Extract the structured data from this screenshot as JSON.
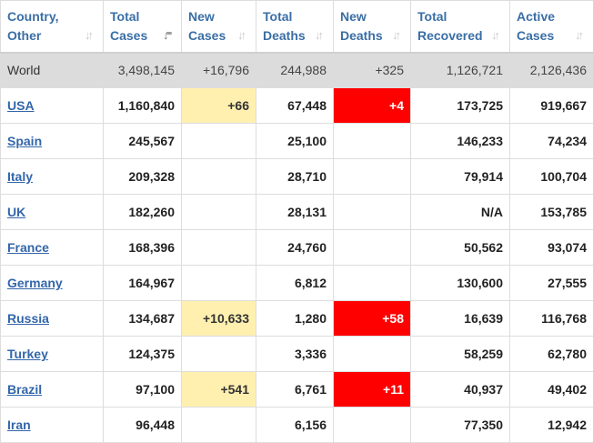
{
  "headers": [
    {
      "line1": "Country,",
      "line2": "Other",
      "sort": "inactive"
    },
    {
      "line1": "Total",
      "line2": "Cases",
      "sort": "active"
    },
    {
      "line1": "New",
      "line2": "Cases",
      "sort": "inactive"
    },
    {
      "line1": "Total",
      "line2": "Deaths",
      "sort": "inactive"
    },
    {
      "line1": "New",
      "line2": "Deaths",
      "sort": "inactive"
    },
    {
      "line1": "Total",
      "line2": "Recovered",
      "sort": "inactive"
    },
    {
      "line1": "Active",
      "line2": "Cases",
      "sort": "inactive"
    }
  ],
  "world": {
    "country": "World",
    "total_cases": "3,498,145",
    "new_cases": "+16,796",
    "total_deaths": "244,988",
    "new_deaths": "+325",
    "total_recovered": "1,126,721",
    "active_cases": "2,126,436"
  },
  "rows": [
    {
      "country": "USA",
      "total_cases": "1,160,840",
      "new_cases": "+66",
      "total_deaths": "67,448",
      "new_deaths": "+4",
      "total_recovered": "173,725",
      "active_cases": "919,667"
    },
    {
      "country": "Spain",
      "total_cases": "245,567",
      "new_cases": "",
      "total_deaths": "25,100",
      "new_deaths": "",
      "total_recovered": "146,233",
      "active_cases": "74,234"
    },
    {
      "country": "Italy",
      "total_cases": "209,328",
      "new_cases": "",
      "total_deaths": "28,710",
      "new_deaths": "",
      "total_recovered": "79,914",
      "active_cases": "100,704"
    },
    {
      "country": "UK",
      "total_cases": "182,260",
      "new_cases": "",
      "total_deaths": "28,131",
      "new_deaths": "",
      "total_recovered": "N/A",
      "active_cases": "153,785"
    },
    {
      "country": "France",
      "total_cases": "168,396",
      "new_cases": "",
      "total_deaths": "24,760",
      "new_deaths": "",
      "total_recovered": "50,562",
      "active_cases": "93,074"
    },
    {
      "country": "Germany",
      "total_cases": "164,967",
      "new_cases": "",
      "total_deaths": "6,812",
      "new_deaths": "",
      "total_recovered": "130,600",
      "active_cases": "27,555"
    },
    {
      "country": "Russia",
      "total_cases": "134,687",
      "new_cases": "+10,633",
      "total_deaths": "1,280",
      "new_deaths": "+58",
      "total_recovered": "16,639",
      "active_cases": "116,768"
    },
    {
      "country": "Turkey",
      "total_cases": "124,375",
      "new_cases": "",
      "total_deaths": "3,336",
      "new_deaths": "",
      "total_recovered": "58,259",
      "active_cases": "62,780"
    },
    {
      "country": "Brazil",
      "total_cases": "97,100",
      "new_cases": "+541",
      "total_deaths": "6,761",
      "new_deaths": "+11",
      "total_recovered": "40,937",
      "active_cases": "49,402"
    },
    {
      "country": "Iran",
      "total_cases": "96,448",
      "new_cases": "",
      "total_deaths": "6,156",
      "new_deaths": "",
      "total_recovered": "77,350",
      "active_cases": "12,942"
    }
  ],
  "colors": {
    "header_text": "#3a6ea5",
    "link": "#3366aa",
    "world_row_bg": "#dcdcdc",
    "new_cases_highlight": "#fff0b0",
    "new_deaths_highlight": "#ff0000"
  },
  "icons": {
    "sort": "sort-arrows-icon",
    "sort_active": "sort-desc-icon"
  }
}
